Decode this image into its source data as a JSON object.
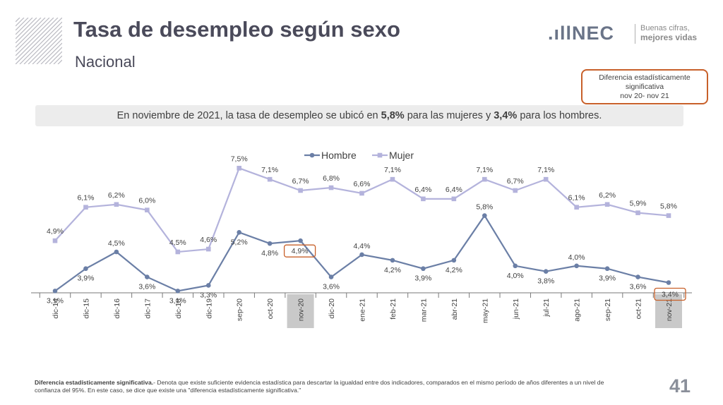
{
  "header": {
    "title": "Tasa de desempleo según sexo",
    "subtitle": "Nacional"
  },
  "logo": {
    "mark": ".ıllNEC",
    "tagline_1": "Buenas cifras,",
    "tagline_2": "mejores vidas"
  },
  "diff_box": {
    "line1": "Diferencia estadísticamente",
    "line2": "significativa",
    "line3": "nov 20- nov 21"
  },
  "summary": {
    "pre": "En noviembre de 2021, la tasa de desempleo se ubicó en ",
    "val_women": "5,8%",
    "mid": " para las mujeres y ",
    "val_men": "3,4%",
    "post": " para los hombres."
  },
  "chart_data": {
    "type": "line",
    "categories": [
      "dic-14",
      "dic-15",
      "dic-16",
      "dic-17",
      "dic-18",
      "dic-19",
      "sep-20",
      "oct-20",
      "nov-20",
      "dic-20",
      "ene-21",
      "feb-21",
      "mar-21",
      "abr-21",
      "may-21",
      "jun-21",
      "jul-21",
      "ago-21",
      "sep-21",
      "oct-21",
      "nov-21"
    ],
    "series": [
      {
        "name": "Hombre",
        "color": "#6b7fa6",
        "values": [
          3.1,
          3.9,
          4.5,
          3.6,
          3.1,
          3.3,
          5.2,
          4.8,
          4.9,
          3.6,
          4.4,
          4.2,
          3.9,
          4.2,
          5.8,
          4.0,
          3.8,
          4.0,
          3.9,
          3.6,
          3.4
        ],
        "labels": [
          "3,1%",
          "3,9%",
          "4,5%",
          "3,6%",
          "3,1%",
          "3,3%",
          "5,2%",
          "4,8%",
          "4,9%",
          "3,6%",
          "4,4%",
          "4,2%",
          "3,9%",
          "4,2%",
          "5,8%",
          "4,0%",
          "3,8%",
          "4,0%",
          "3,9%",
          "3,6%",
          "3,4%"
        ]
      },
      {
        "name": "Mujer",
        "color": "#b4b3dc",
        "values": [
          4.9,
          6.1,
          6.2,
          6.0,
          4.5,
          4.6,
          7.5,
          7.1,
          6.7,
          6.8,
          6.6,
          7.1,
          6.4,
          6.4,
          7.1,
          6.7,
          7.1,
          6.1,
          6.2,
          5.9,
          5.8
        ],
        "labels": [
          "4,9%",
          "6,1%",
          "6,2%",
          "6,0%",
          "4,5%",
          "4,6%",
          "7,5%",
          "7,1%",
          "6,7%",
          "6,8%",
          "6,6%",
          "7,1%",
          "6,4%",
          "6,4%",
          "7,1%",
          "6,7%",
          "7,1%",
          "6,1%",
          "6,2%",
          "5,9%",
          "5,8%"
        ]
      }
    ],
    "highlighted_categories": [
      "nov-20",
      "nov-21"
    ],
    "highlight_color": "#c8602a",
    "legend": "top-center",
    "ylim": [
      0,
      9
    ],
    "grid": false
  },
  "footnote": {
    "bold": "Diferencia estadísticamente significativa.",
    "text": "- Denota que existe suficiente evidencia estadística para descartar la igualdad entre dos indicadores, comparados en el mismo período de años diferentes a un nivel de confianza del 95%. En este caso, se dice que existe una \"diferencia estadísticamente significativa.\""
  },
  "page_number": "41"
}
